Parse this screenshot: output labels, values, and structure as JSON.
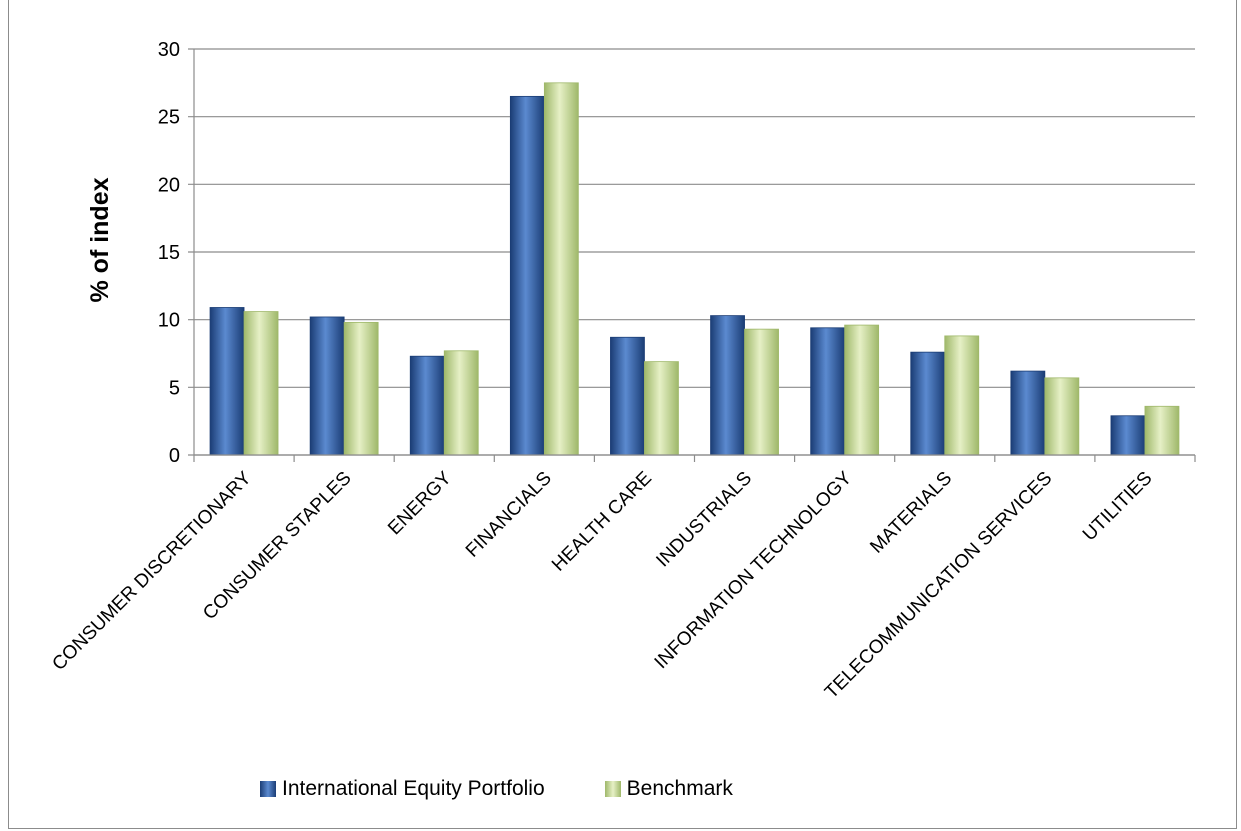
{
  "colors": {
    "series1": "#2f5fa8",
    "series1_dark": "#1b3d75",
    "series1_light": "#5b8ad0",
    "series2": "#c8db95",
    "series2_dark": "#9fb86a",
    "series2_light": "#e6f0c6",
    "grid": "#8c8c8c"
  },
  "chart_data": {
    "type": "bar",
    "title": "",
    "xlabel": "",
    "ylabel": "% of index",
    "ylim": [
      0,
      30
    ],
    "yticks": [
      0,
      5,
      10,
      15,
      20,
      25,
      30
    ],
    "grid": true,
    "legend_position": "bottom",
    "categories": [
      "CONSUMER DISCRETIONARY",
      "CONSUMER STAPLES",
      "ENERGY",
      "FINANCIALS",
      "HEALTH CARE",
      "INDUSTRIALS",
      "INFORMATION TECHNOLOGY",
      "MATERIALS",
      "TELECOMMUNICATION SERVICES",
      "UTILITIES"
    ],
    "series": [
      {
        "name": "International Equity Portfolio",
        "values": [
          10.9,
          10.2,
          7.3,
          26.5,
          8.7,
          10.3,
          9.4,
          7.6,
          6.2,
          2.9
        ]
      },
      {
        "name": "Benchmark",
        "values": [
          10.6,
          9.8,
          7.7,
          27.5,
          6.9,
          9.3,
          9.6,
          8.8,
          5.7,
          3.6
        ]
      }
    ]
  }
}
